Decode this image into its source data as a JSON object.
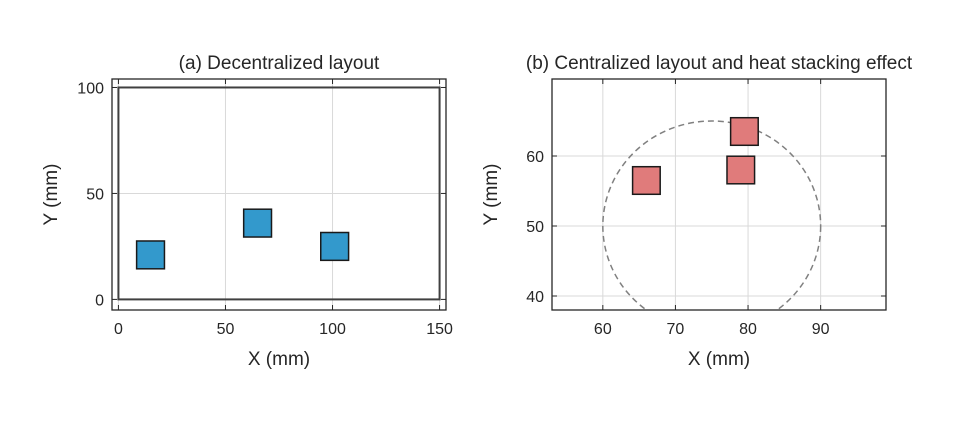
{
  "chart_data": [
    {
      "type": "scatter",
      "title": "(a) Decentralized layout",
      "xlabel": "X (mm)",
      "ylabel": "Y (mm)",
      "xlim": [
        -3,
        153
      ],
      "ylim": [
        -5,
        104
      ],
      "xticks": [
        0,
        50,
        100,
        150
      ],
      "yticks": [
        0,
        50,
        100
      ],
      "grid": true,
      "colors": {
        "marker_fill": "#3399cc",
        "marker_edge": "#1a1a1a",
        "boundary": "#404040",
        "grid": "#d9d9d9"
      },
      "boundary": {
        "x": [
          0,
          150
        ],
        "y": [
          0,
          100
        ]
      },
      "series": [
        {
          "x": [
            15,
            65,
            101
          ],
          "y": [
            21,
            36,
            25
          ],
          "size": [
            13,
            13,
            13
          ]
        }
      ]
    },
    {
      "type": "scatter",
      "title": "(b) Centralized layout and heat stacking effect",
      "xlabel": "X (mm)",
      "ylabel": "Y (mm)",
      "xlim": [
        53,
        99
      ],
      "ylim": [
        38,
        71
      ],
      "xticks": [
        60,
        70,
        80,
        90
      ],
      "yticks": [
        40,
        50,
        60
      ],
      "grid": true,
      "colors": {
        "marker_fill": "#e07b7b",
        "marker_edge": "#1a1a1a",
        "circle": "#808080",
        "grid": "#d9d9d9"
      },
      "circle": {
        "cx": 75,
        "cy": 50,
        "rx": 15,
        "ry": 15
      },
      "series": [
        {
          "x": [
            66,
            79.5,
            79
          ],
          "y": [
            56.5,
            63.5,
            58
          ],
          "size": [
            3.8,
            3.8,
            3.8
          ]
        }
      ]
    }
  ]
}
